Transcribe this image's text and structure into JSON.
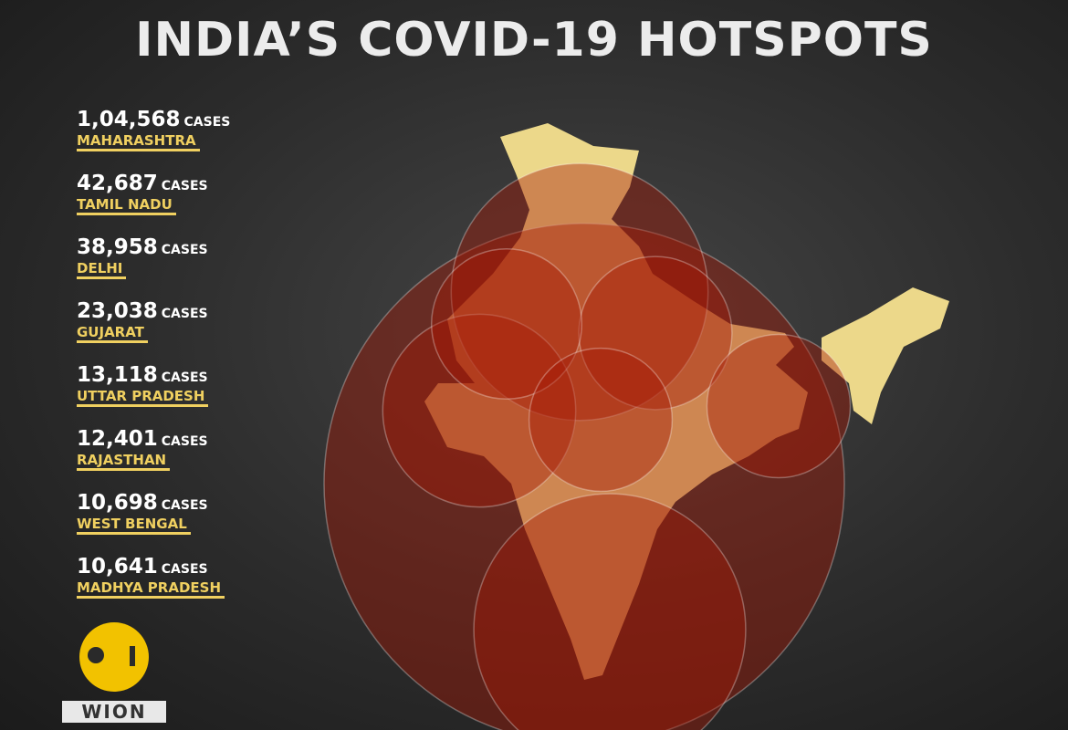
{
  "title": "INDIA’S COVID-19 HOTSPOTS",
  "unit": "CASES",
  "hotspots": [
    {
      "state": "MAHARASHTRA",
      "cases": {
        "value": 104568,
        "label": "1,04,568"
      }
    },
    {
      "state": "TAMIL NADU",
      "cases": {
        "value": 42687,
        "label": "42,687"
      }
    },
    {
      "state": "DELHI",
      "cases": {
        "value": 38958,
        "label": "38,958"
      }
    },
    {
      "state": "GUJARAT",
      "cases": {
        "value": 23038,
        "label": "23,038"
      }
    },
    {
      "state": "UTTAR PRADESH",
      "cases": {
        "value": 13118,
        "label": "13,118"
      }
    },
    {
      "state": "RAJASTHAN",
      "cases": {
        "value": 12401,
        "label": "12,401"
      }
    },
    {
      "state": "WEST BENGAL",
      "cases": {
        "value": 10698,
        "label": "10,698"
      }
    },
    {
      "state": "MADHYA PRADESH",
      "cases": {
        "value": 10641,
        "label": "10,641"
      }
    }
  ],
  "logo": "WION"
}
